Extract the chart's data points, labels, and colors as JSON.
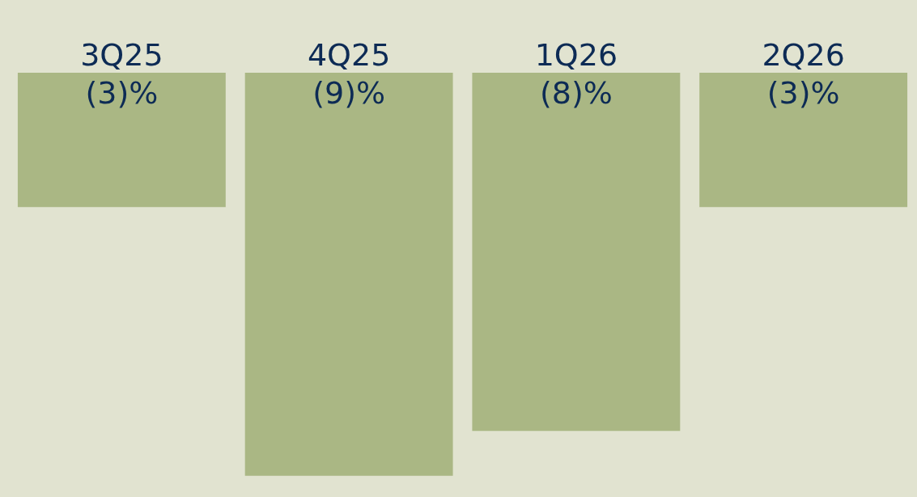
{
  "chart_data": {
    "type": "bar",
    "categories": [
      "3Q25",
      "4Q25",
      "1Q26",
      "2Q26"
    ],
    "values": [
      -3,
      -9,
      -8,
      -3
    ],
    "value_labels": [
      "(3)%",
      "(9)%",
      "(8)%",
      "(3)%"
    ],
    "color": "#aab784"
  }
}
